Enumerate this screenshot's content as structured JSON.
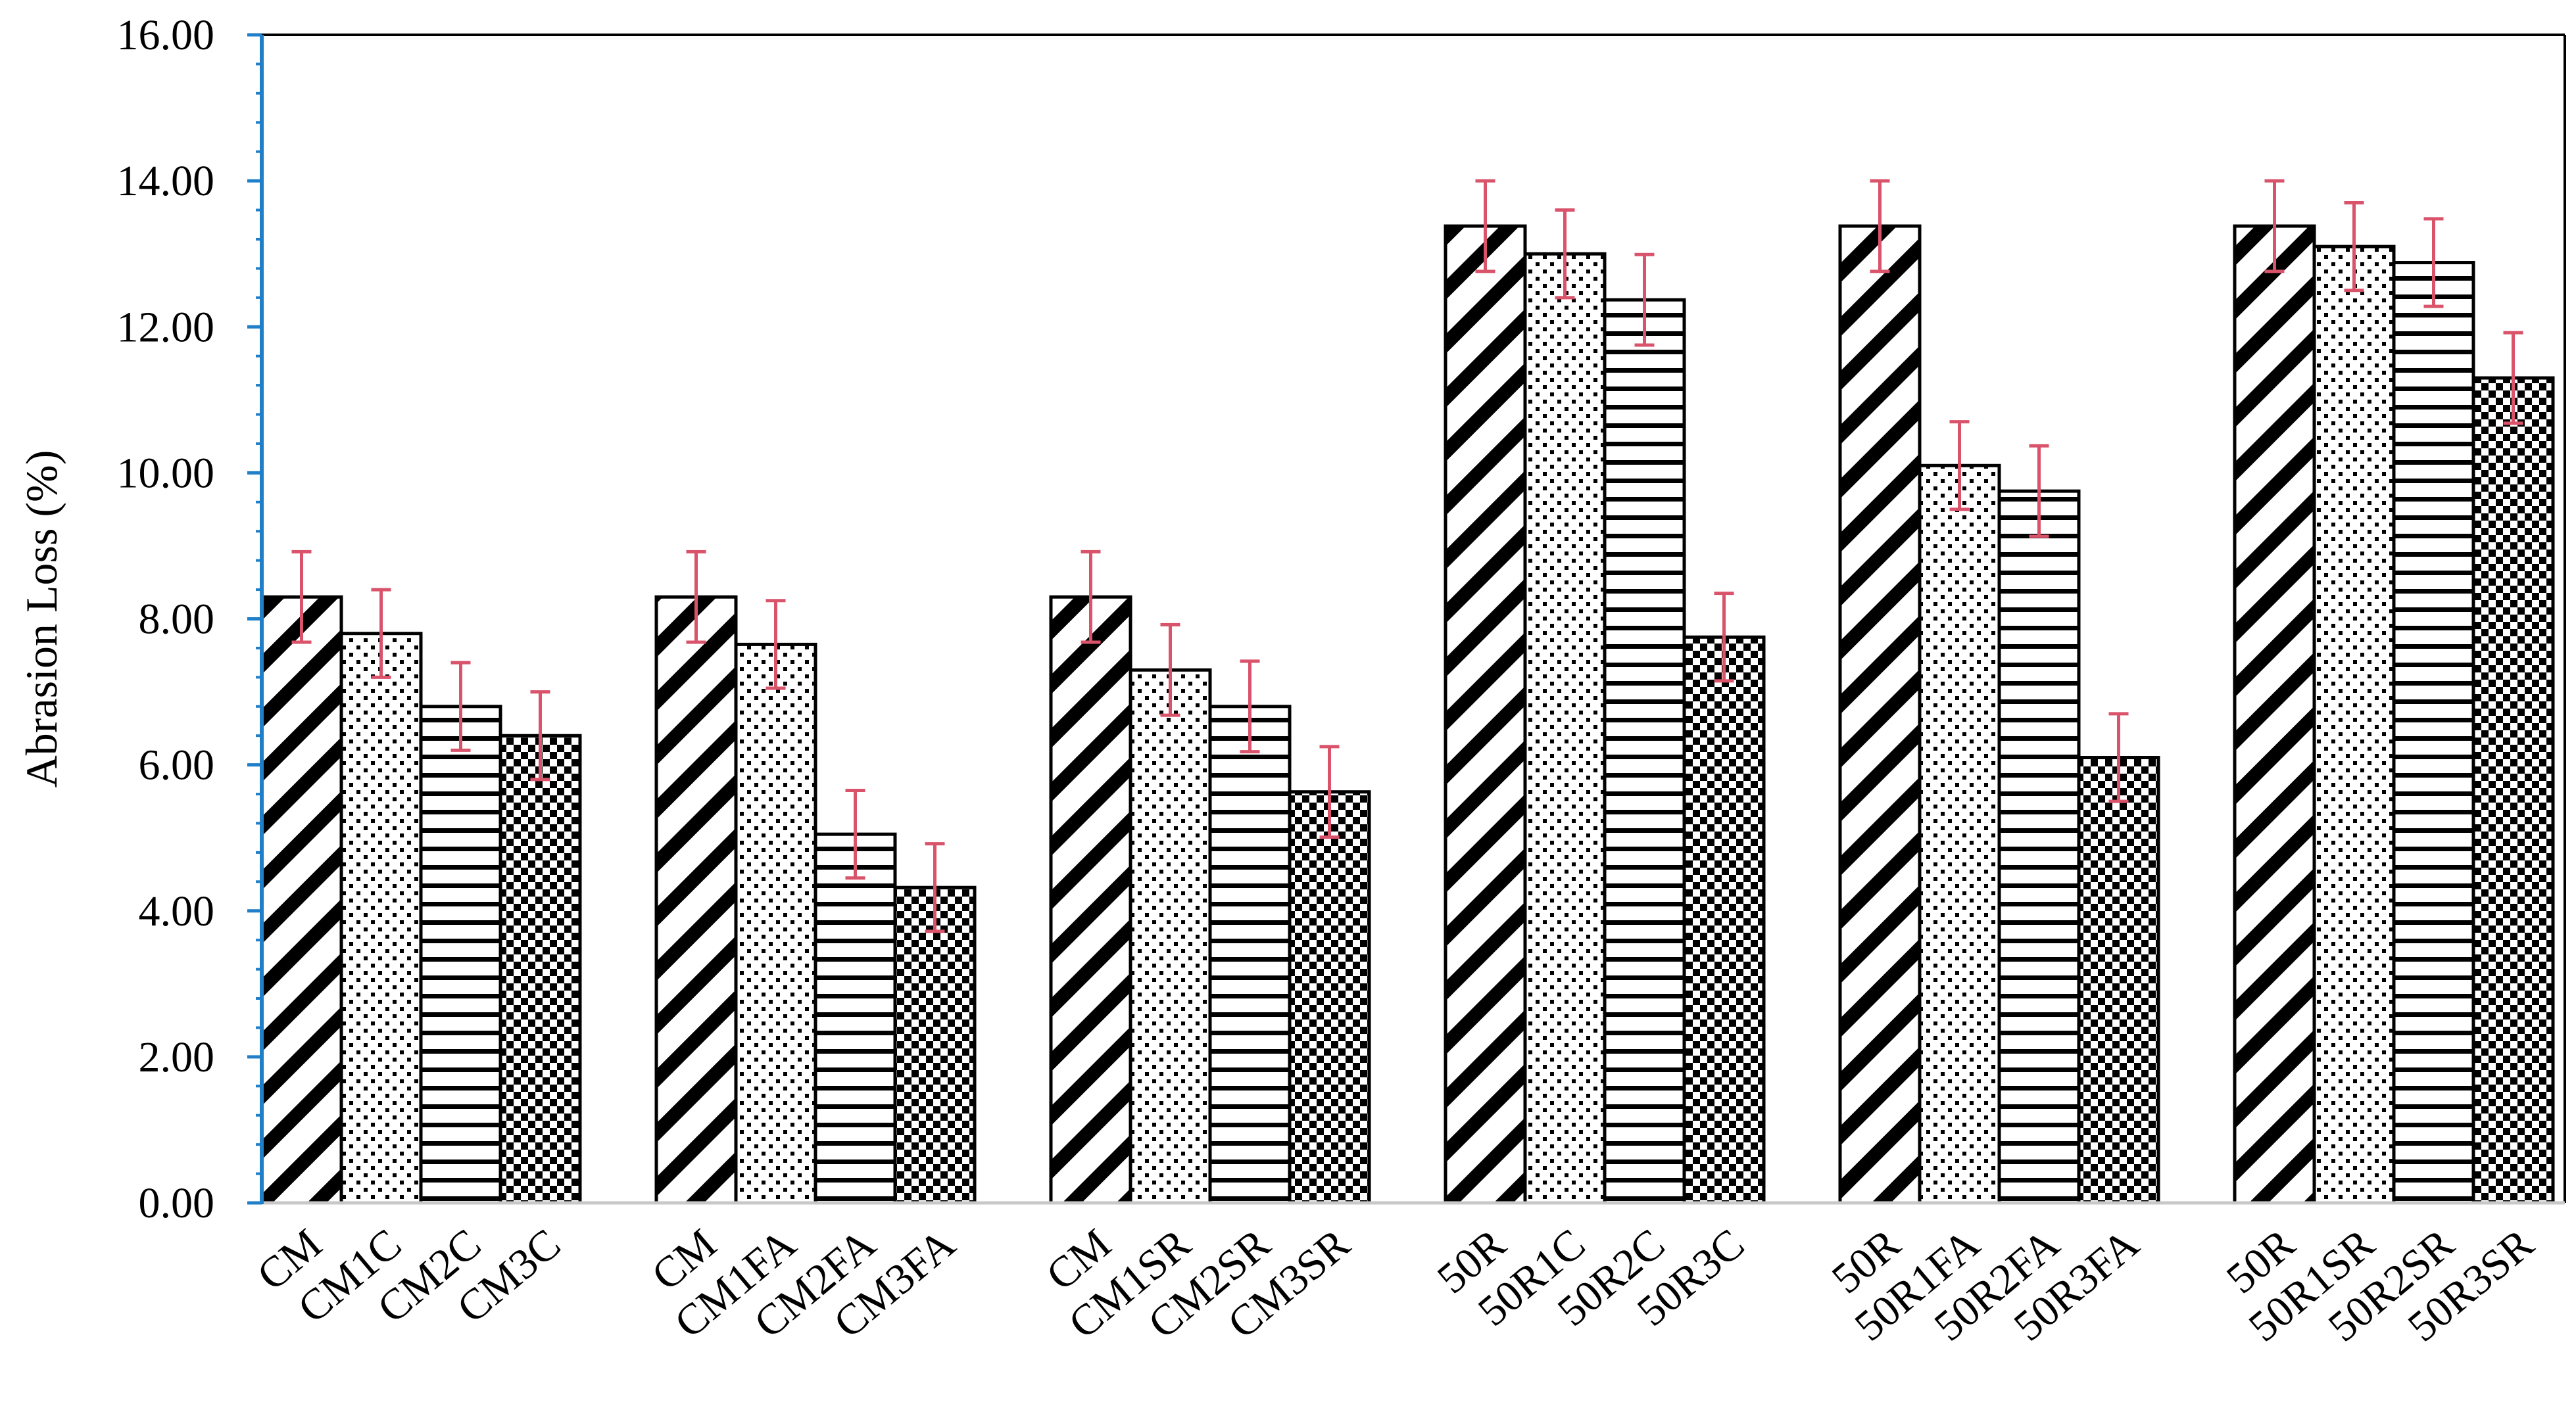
{
  "chart_data": {
    "type": "bar",
    "title": "",
    "xlabel": "",
    "ylabel": "Abrasion Loss (%)",
    "ylim": [
      0,
      16
    ],
    "yticks": [
      "0.00",
      "2.00",
      "4.00",
      "6.00",
      "8.00",
      "10.00",
      "12.00",
      "14.00",
      "16.00"
    ],
    "grid": false,
    "patterns": [
      "diagonal-stripes",
      "dots",
      "horizontal-lines",
      "checkerboard"
    ],
    "colors": {
      "bar_stroke": "#000000",
      "error_bar": "#d9536b",
      "y_axis": "#1f7fc9",
      "frame": "#000000"
    },
    "groups": [
      {
        "labels": [
          "CM",
          "CM1C",
          "CM2C",
          "CM3C"
        ],
        "values": [
          8.3,
          7.8,
          6.8,
          6.4
        ],
        "errors": [
          0.62,
          0.6,
          0.6,
          0.6
        ]
      },
      {
        "labels": [
          "CM",
          "CM1FA",
          "CM2FA",
          "CM3FA"
        ],
        "values": [
          8.3,
          7.65,
          5.05,
          4.32
        ],
        "errors": [
          0.62,
          0.6,
          0.6,
          0.6
        ]
      },
      {
        "labels": [
          "CM",
          "CM1SR",
          "CM2SR",
          "CM3SR"
        ],
        "values": [
          8.3,
          7.3,
          6.8,
          5.63
        ],
        "errors": [
          0.62,
          0.62,
          0.62,
          0.62
        ]
      },
      {
        "labels": [
          "50R",
          "50R1C",
          "50R2C",
          "50R3C"
        ],
        "values": [
          13.38,
          13.0,
          12.37,
          7.75
        ],
        "errors": [
          0.62,
          0.6,
          0.62,
          0.6
        ]
      },
      {
        "labels": [
          "50R",
          "50R1FA",
          "50R2FA",
          "50R3FA"
        ],
        "values": [
          13.38,
          10.1,
          9.75,
          6.1
        ],
        "errors": [
          0.62,
          0.6,
          0.62,
          0.6
        ]
      },
      {
        "labels": [
          "50R",
          "50R1SR",
          "50R2SR",
          "50R3SR"
        ],
        "values": [
          13.38,
          13.1,
          12.88,
          11.3
        ],
        "errors": [
          0.62,
          0.6,
          0.6,
          0.62
        ]
      }
    ]
  }
}
